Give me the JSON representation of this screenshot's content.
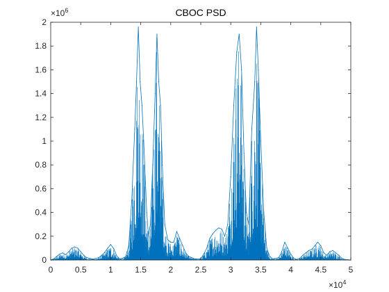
{
  "chart_data": {
    "type": "line",
    "title": "CBOC PSD",
    "xlabel": "",
    "ylabel": "",
    "xlim": [
      0,
      50000
    ],
    "ylim": [
      0,
      2000000
    ],
    "x_ticks": [
      {
        "value": 0,
        "label": "0"
      },
      {
        "value": 5000,
        "label": "0.5"
      },
      {
        "value": 10000,
        "label": "1"
      },
      {
        "value": 15000,
        "label": "1.5"
      },
      {
        "value": 20000,
        "label": "2"
      },
      {
        "value": 25000,
        "label": "2.5"
      },
      {
        "value": 30000,
        "label": "3"
      },
      {
        "value": 35000,
        "label": "3.5"
      },
      {
        "value": 40000,
        "label": "4"
      },
      {
        "value": 45000,
        "label": "4.5"
      },
      {
        "value": 50000,
        "label": "5"
      }
    ],
    "y_ticks": [
      {
        "value": 0,
        "label": "0"
      },
      {
        "value": 200000,
        "label": "0.2"
      },
      {
        "value": 400000,
        "label": "0.4"
      },
      {
        "value": 600000,
        "label": "0.6"
      },
      {
        "value": 800000,
        "label": "0.8"
      },
      {
        "value": 1000000,
        "label": "1"
      },
      {
        "value": 1200000,
        "label": "1.2"
      },
      {
        "value": 1400000,
        "label": "1.4"
      },
      {
        "value": 1600000,
        "label": "1.6"
      },
      {
        "value": 1800000,
        "label": "1.8"
      },
      {
        "value": 2000000,
        "label": "2"
      }
    ],
    "x_exponent": {
      "base": "×10",
      "power": "4"
    },
    "y_exponent": {
      "base": "×10",
      "power": "6"
    },
    "grid": false,
    "legend": "none",
    "series": [
      {
        "color": "#0072BD",
        "envelope": [
          [
            0,
            0
          ],
          [
            500,
            10000
          ],
          [
            1000,
            30000
          ],
          [
            1500,
            50000
          ],
          [
            2000,
            60000
          ],
          [
            2500,
            45000
          ],
          [
            3000,
            70000
          ],
          [
            3500,
            100000
          ],
          [
            4000,
            110000
          ],
          [
            4500,
            100000
          ],
          [
            5000,
            70000
          ],
          [
            5500,
            40000
          ],
          [
            6000,
            20000
          ],
          [
            7000,
            8000
          ],
          [
            8000,
            20000
          ],
          [
            8500,
            40000
          ],
          [
            9000,
            65000
          ],
          [
            9500,
            100000
          ],
          [
            10000,
            130000
          ],
          [
            10500,
            95000
          ],
          [
            11000,
            35000
          ],
          [
            11500,
            10000
          ],
          [
            12000,
            15000
          ],
          [
            12500,
            30000
          ],
          [
            13000,
            120000
          ],
          [
            13500,
            500000
          ],
          [
            14000,
            1100000
          ],
          [
            14300,
            1500000
          ],
          [
            14600,
            1960000
          ],
          [
            14900,
            1500000
          ],
          [
            15200,
            1300000
          ],
          [
            15500,
            1000000
          ],
          [
            16000,
            400000
          ],
          [
            16300,
            200000
          ],
          [
            16600,
            300000
          ],
          [
            17000,
            800000
          ],
          [
            17400,
            1400000
          ],
          [
            17700,
            1900000
          ],
          [
            18000,
            1500000
          ],
          [
            18300,
            1300000
          ],
          [
            18600,
            800000
          ],
          [
            19000,
            300000
          ],
          [
            19500,
            170000
          ],
          [
            20000,
            150000
          ],
          [
            20500,
            150000
          ],
          [
            21000,
            240000
          ],
          [
            21500,
            180000
          ],
          [
            22000,
            120000
          ],
          [
            22500,
            60000
          ],
          [
            23000,
            30000
          ],
          [
            23500,
            20000
          ],
          [
            24000,
            10000
          ],
          [
            25000,
            10000
          ],
          [
            25500,
            50000
          ],
          [
            26000,
            100000
          ],
          [
            26500,
            180000
          ],
          [
            27000,
            220000
          ],
          [
            27500,
            250000
          ],
          [
            28000,
            270000
          ],
          [
            28500,
            260000
          ],
          [
            29000,
            200000
          ],
          [
            29500,
            300000
          ],
          [
            30000,
            700000
          ],
          [
            30500,
            1300000
          ],
          [
            31000,
            1750000
          ],
          [
            31400,
            1900000
          ],
          [
            31800,
            1600000
          ],
          [
            32200,
            900000
          ],
          [
            32600,
            400000
          ],
          [
            33000,
            300000
          ],
          [
            33500,
            1100000
          ],
          [
            34000,
            1500000
          ],
          [
            34300,
            1960000
          ],
          [
            34600,
            1600000
          ],
          [
            35000,
            1000000
          ],
          [
            35500,
            400000
          ],
          [
            36000,
            100000
          ],
          [
            36500,
            30000
          ],
          [
            37000,
            10000
          ],
          [
            38000,
            20000
          ],
          [
            38500,
            70000
          ],
          [
            39000,
            150000
          ],
          [
            39500,
            100000
          ],
          [
            40000,
            50000
          ],
          [
            40500,
            15000
          ],
          [
            41000,
            5000
          ],
          [
            41500,
            15000
          ],
          [
            42000,
            40000
          ],
          [
            42500,
            60000
          ],
          [
            43000,
            80000
          ],
          [
            43500,
            90000
          ],
          [
            44000,
            120000
          ],
          [
            44500,
            150000
          ],
          [
            45000,
            120000
          ],
          [
            45500,
            60000
          ],
          [
            46000,
            40000
          ],
          [
            46500,
            70000
          ],
          [
            47000,
            80000
          ],
          [
            47500,
            60000
          ],
          [
            48000,
            40000
          ],
          [
            48500,
            15000
          ],
          [
            49000,
            5000
          ],
          [
            50000,
            0
          ]
        ]
      }
    ]
  }
}
